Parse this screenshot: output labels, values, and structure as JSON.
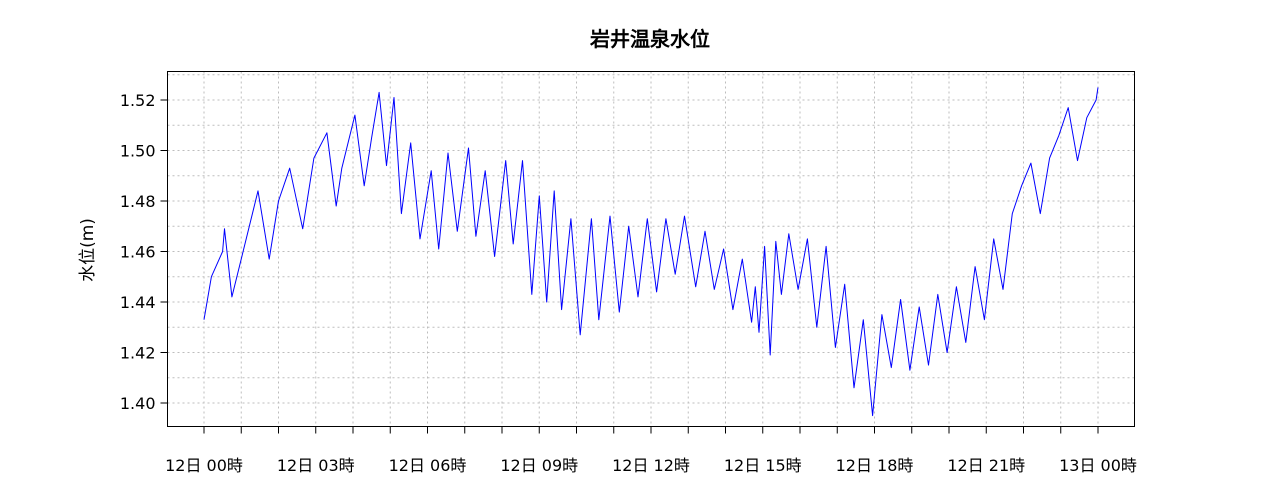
{
  "chart_data": {
    "type": "line",
    "title": "岩井温泉水位",
    "ylabel": "水位(m)",
    "xlabel": "",
    "ylim": [
      1.39,
      1.53
    ],
    "yticks": [
      1.4,
      1.42,
      1.44,
      1.46,
      1.48,
      1.5,
      1.52
    ],
    "ytick_labels": [
      "1.40",
      "1.42",
      "1.44",
      "1.46",
      "1.48",
      "1.50",
      "1.52"
    ],
    "xlim_hours": [
      -1,
      25
    ],
    "xticks_hours": [
      0,
      3,
      6,
      9,
      12,
      15,
      18,
      21,
      24
    ],
    "xtick_labels": [
      "12日 00時",
      "12日 03時",
      "12日 06時",
      "12日 09時",
      "12日 12時",
      "12日 15時",
      "12日 18時",
      "12日 21時",
      "13日 00時"
    ],
    "grid": true,
    "series": [
      {
        "color": "#0000ff",
        "x_hours": [
          0,
          0.2,
          0.5,
          0.55,
          0.75,
          1.2,
          1.45,
          1.75,
          2.0,
          2.3,
          2.65,
          2.95,
          3.3,
          3.55,
          3.7,
          4.05,
          4.3,
          4.5,
          4.7,
          4.9,
          5.1,
          5.3,
          5.55,
          5.8,
          6.1,
          6.3,
          6.55,
          6.8,
          7.1,
          7.3,
          7.55,
          7.8,
          8.1,
          8.3,
          8.55,
          8.8,
          9.0,
          9.2,
          9.4,
          9.6,
          9.85,
          10.1,
          10.4,
          10.6,
          10.9,
          11.15,
          11.4,
          11.65,
          11.9,
          12.15,
          12.4,
          12.65,
          12.9,
          13.2,
          13.45,
          13.7,
          13.95,
          14.2,
          14.45,
          14.7,
          14.8,
          14.9,
          15.05,
          15.2,
          15.35,
          15.5,
          15.7,
          15.95,
          16.2,
          16.45,
          16.7,
          16.95,
          17.2,
          17.45,
          17.7,
          17.95,
          18.2,
          18.45,
          18.7,
          18.95,
          19.2,
          19.45,
          19.7,
          19.95,
          20.2,
          20.45,
          20.7,
          20.95,
          21.2,
          21.45,
          21.7,
          21.95,
          22.2,
          22.45,
          22.7,
          22.95,
          23.2,
          23.45,
          23.7,
          23.95,
          24.0
        ],
        "values": [
          1.433,
          1.45,
          1.46,
          1.469,
          1.442,
          1.469,
          1.484,
          1.457,
          1.48,
          1.493,
          1.469,
          1.497,
          1.507,
          1.478,
          1.493,
          1.514,
          1.486,
          1.505,
          1.523,
          1.494,
          1.521,
          1.475,
          1.503,
          1.465,
          1.492,
          1.461,
          1.499,
          1.468,
          1.501,
          1.466,
          1.492,
          1.458,
          1.496,
          1.463,
          1.496,
          1.443,
          1.482,
          1.44,
          1.484,
          1.437,
          1.473,
          1.427,
          1.473,
          1.433,
          1.474,
          1.436,
          1.47,
          1.442,
          1.473,
          1.444,
          1.473,
          1.451,
          1.474,
          1.446,
          1.468,
          1.445,
          1.461,
          1.437,
          1.457,
          1.432,
          1.446,
          1.428,
          1.462,
          1.419,
          1.464,
          1.443,
          1.467,
          1.445,
          1.465,
          1.43,
          1.462,
          1.422,
          1.447,
          1.406,
          1.433,
          1.395,
          1.435,
          1.414,
          1.441,
          1.413,
          1.438,
          1.415,
          1.443,
          1.42,
          1.446,
          1.424,
          1.454,
          1.433,
          1.465,
          1.445,
          1.475,
          1.486,
          1.495,
          1.475,
          1.497,
          1.506,
          1.517,
          1.496,
          1.513,
          1.52,
          1.525
        ]
      }
    ]
  }
}
